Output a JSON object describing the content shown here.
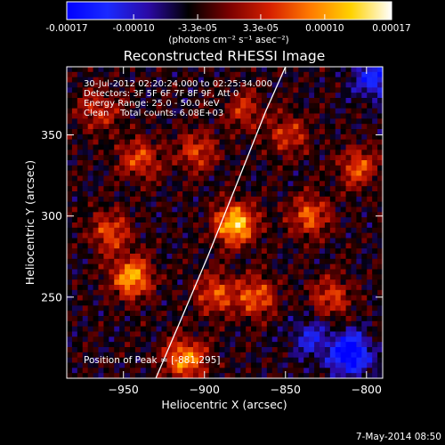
{
  "colorbar": {
    "ticks": [
      "-0.00017",
      "-0.00010",
      "-3.3e-05",
      "3.3e-05",
      "0.00010",
      "0.00017"
    ],
    "tick_values": [
      -0.00017,
      -0.0001,
      -3.3e-05,
      3.3e-05,
      0.0001,
      0.00017
    ],
    "range": [
      -0.00017,
      0.00017
    ],
    "unit_label": "(photons cm⁻² s⁻¹ asec⁻²)",
    "stops": [
      "#0000ff",
      "#1a2aff",
      "#2b0aa6",
      "#000000",
      "#7a0000",
      "#d62000",
      "#ff7a00",
      "#ffd200",
      "#ffffff"
    ]
  },
  "chart_data": {
    "type": "heatmap",
    "title": "Reconstructed RHESSI Image",
    "xlabel": "Heliocentric X (arcsec)",
    "ylabel": "Heliocentric Y (arcsec)",
    "xlim": [
      -985,
      -790
    ],
    "ylim": [
      200,
      392
    ],
    "xticks": [
      -950,
      -900,
      -850,
      -800
    ],
    "yticks": [
      250,
      300,
      350
    ],
    "xtick_labels": [
      "−950",
      "−900",
      "−850",
      "−800"
    ],
    "ytick_labels": [
      "250",
      "300",
      "350"
    ],
    "info_lines": [
      "30-Jul-2012 02:20:24.000 to 02:25:34.000",
      "Detectors: 3F 5F 6F 7F 8F 9F, Att 0",
      "Energy Range: 25.0 - 50.0 keV",
      "Clean    Total counts: 6.08E+03"
    ],
    "peak_label": "Position of Peak = [-881,295]",
    "peak": [
      -881,
      295
    ],
    "limb": [
      [
        -930,
        200
      ],
      [
        -915,
        235
      ],
      [
        -898,
        275
      ],
      [
        -880,
        320
      ],
      [
        -862,
        365
      ],
      [
        -850,
        392
      ]
    ],
    "blobs": [
      {
        "x": -881,
        "y": 295,
        "amp": 1.0
      },
      {
        "x": -945,
        "y": 262,
        "amp": 0.85
      },
      {
        "x": -912,
        "y": 212,
        "amp": 0.8
      },
      {
        "x": -958,
        "y": 290,
        "amp": 0.55
      },
      {
        "x": -940,
        "y": 335,
        "amp": 0.55
      },
      {
        "x": -905,
        "y": 340,
        "amp": 0.5
      },
      {
        "x": -893,
        "y": 252,
        "amp": 0.55
      },
      {
        "x": -868,
        "y": 250,
        "amp": 0.6
      },
      {
        "x": -835,
        "y": 300,
        "amp": 0.6
      },
      {
        "x": -805,
        "y": 330,
        "amp": 0.55
      },
      {
        "x": -848,
        "y": 350,
        "amp": 0.45
      },
      {
        "x": -965,
        "y": 365,
        "amp": 0.45
      },
      {
        "x": -822,
        "y": 250,
        "amp": 0.5
      },
      {
        "x": -875,
        "y": 365,
        "amp": 0.4
      },
      {
        "x": -810,
        "y": 215,
        "amp": -0.9
      },
      {
        "x": -795,
        "y": 385,
        "amp": -0.6
      },
      {
        "x": -835,
        "y": 225,
        "amp": -0.4
      }
    ]
  },
  "footer": {
    "timestamp": "7-May-2014 08:50"
  }
}
